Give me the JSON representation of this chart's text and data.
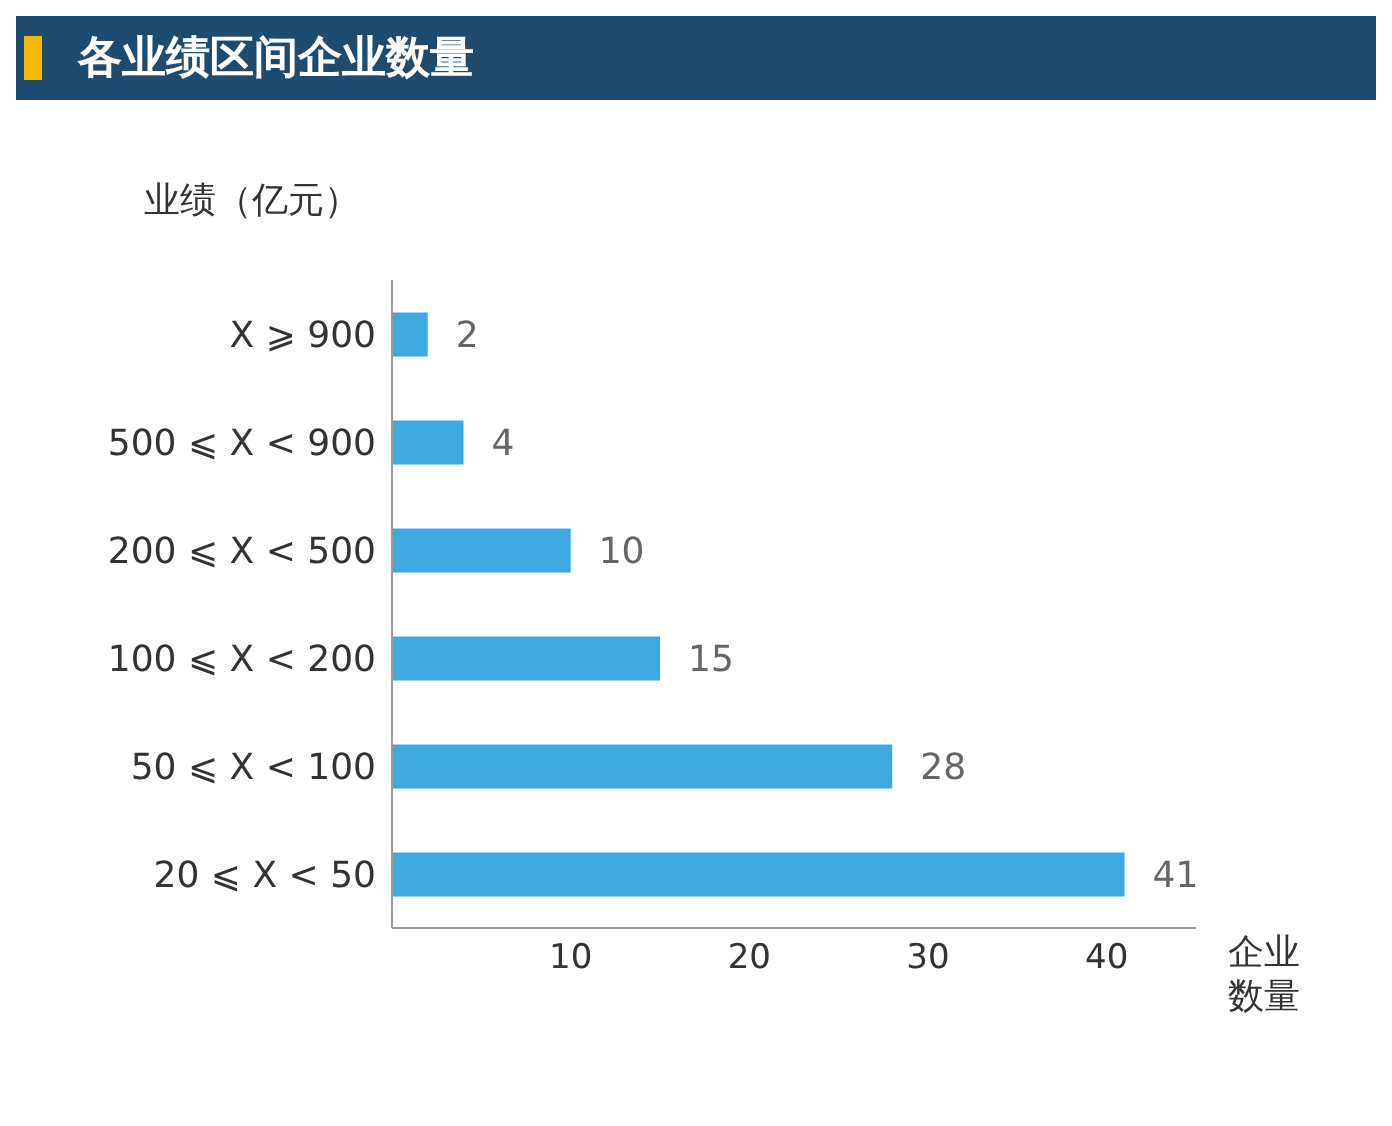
{
  "chart_data": {
    "type": "bar",
    "orientation": "horizontal",
    "title": "各业绩区间企业数量",
    "ylabel": "业绩（亿元）",
    "xlabel": "企业数量",
    "categories": [
      "X ⩾ 900",
      "500 ⩽ X < 900",
      "200 ⩽ X < 500",
      "100 ⩽ X < 200",
      "50 ⩽ X < 100",
      "20 ⩽ X < 50"
    ],
    "values": [
      2,
      4,
      10,
      15,
      28,
      41
    ],
    "color": "#3ea8e0",
    "xlim": [
      0,
      45
    ],
    "xticks": [
      10,
      20,
      30,
      40
    ],
    "data_labels": true,
    "grid": false
  }
}
